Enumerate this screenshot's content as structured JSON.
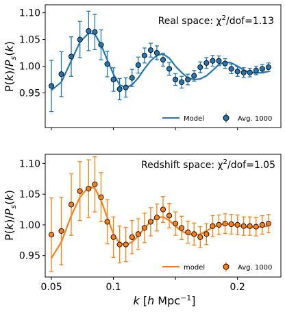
{
  "chart_data": [
    {
      "type": "line",
      "annotation": "Real space: χ²/dof=1.13",
      "annotation_math": {
        "prefix": "Real space: ",
        "chi": "χ",
        "sup": "2",
        "suffix": "/dof=1.13"
      },
      "ylabel": "P(k)/Ps(k)",
      "xlabel": "",
      "xlim": [
        0.045,
        0.235
      ],
      "ylim": [
        0.885,
        1.115
      ],
      "x_ticks": [
        0.05,
        0.1,
        0.15,
        0.2
      ],
      "x_tick_labels": [
        "",
        "",
        "",
        ""
      ],
      "y_ticks": [
        0.95,
        1.0,
        1.05,
        1.1
      ],
      "y_tick_labels": [
        "0.95",
        "1.00",
        "1.05",
        "1.10"
      ],
      "color": "#1f77b4",
      "legend_position": "lower-right",
      "legend": {
        "line": "Model",
        "points": "Avg. 1000"
      },
      "series": [
        {
          "name": "Model",
          "kind": "line",
          "x": [
            0.05,
            0.058,
            0.066,
            0.073,
            0.08,
            0.085,
            0.09,
            0.095,
            0.1,
            0.105,
            0.11,
            0.115,
            0.12,
            0.125,
            0.13,
            0.135,
            0.14,
            0.145,
            0.15,
            0.155,
            0.16,
            0.165,
            0.17,
            0.175,
            0.18,
            0.185,
            0.19,
            0.195,
            0.2,
            0.205,
            0.21,
            0.215,
            0.22,
            0.225
          ],
          "y": [
            0.955,
            0.97,
            1.01,
            1.045,
            1.062,
            1.06,
            1.04,
            1.012,
            0.985,
            0.965,
            0.96,
            0.965,
            0.978,
            0.995,
            1.01,
            1.02,
            1.023,
            1.015,
            1.0,
            0.988,
            0.978,
            0.975,
            0.976,
            0.982,
            0.992,
            1.003,
            1.008,
            1.006,
            1.0,
            0.993,
            0.988,
            0.987,
            0.988,
            0.99
          ]
        },
        {
          "name": "Avg. 1000",
          "kind": "errorbar",
          "x": [
            0.05,
            0.058,
            0.066,
            0.073,
            0.08,
            0.085,
            0.09,
            0.095,
            0.1,
            0.105,
            0.11,
            0.115,
            0.12,
            0.125,
            0.13,
            0.135,
            0.14,
            0.145,
            0.15,
            0.155,
            0.16,
            0.165,
            0.17,
            0.175,
            0.18,
            0.185,
            0.19,
            0.195,
            0.2,
            0.205,
            0.21,
            0.215,
            0.22,
            0.225
          ],
          "y": [
            0.963,
            0.985,
            1.018,
            1.05,
            1.066,
            1.064,
            1.04,
            1.004,
            0.975,
            0.957,
            0.96,
            0.978,
            1.002,
            1.02,
            1.03,
            1.025,
            1.012,
            0.995,
            0.975,
            0.97,
            0.975,
            0.982,
            0.998,
            1.006,
            1.01,
            1.01,
            1.005,
            0.995,
            0.99,
            0.988,
            0.988,
            0.992,
            0.995,
            0.998
          ],
          "yerr": [
            0.048,
            0.042,
            0.037,
            0.034,
            0.037,
            0.033,
            0.028,
            0.024,
            0.022,
            0.02,
            0.018,
            0.016,
            0.015,
            0.014,
            0.013,
            0.013,
            0.012,
            0.012,
            0.011,
            0.011,
            0.01,
            0.01,
            0.01,
            0.01,
            0.01,
            0.009,
            0.009,
            0.009,
            0.009,
            0.009,
            0.008,
            0.008,
            0.008,
            0.008
          ]
        }
      ]
    },
    {
      "type": "line",
      "annotation": "Redshift space: χ²/dof=1.05",
      "annotation_math": {
        "prefix": "Redshift space: ",
        "chi": "χ",
        "sup": "2",
        "suffix": "/dof=1.05"
      },
      "ylabel": "P(k)/Ps(k)",
      "xlabel": "k [h Mpc⁻¹]",
      "xlim": [
        0.045,
        0.235
      ],
      "ylim": [
        0.915,
        1.115
      ],
      "x_ticks": [
        0.05,
        0.1,
        0.15,
        0.2
      ],
      "x_tick_labels": [
        "0.05",
        "0.1",
        "",
        "0.2"
      ],
      "y_ticks": [
        0.95,
        1.0,
        1.05,
        1.1
      ],
      "y_tick_labels": [
        "0.95",
        "1.00",
        "1.05",
        "1.10"
      ],
      "color": "#ff7f0e",
      "legend_position": "lower-right",
      "legend": {
        "line": "model",
        "points": "Avg. 1000"
      },
      "series": [
        {
          "name": "model",
          "kind": "line",
          "x": [
            0.05,
            0.058,
            0.066,
            0.073,
            0.08,
            0.085,
            0.09,
            0.095,
            0.1,
            0.105,
            0.11,
            0.115,
            0.12,
            0.125,
            0.13,
            0.135,
            0.14,
            0.145,
            0.15,
            0.155,
            0.16,
            0.165,
            0.17,
            0.175,
            0.18,
            0.185,
            0.19,
            0.195,
            0.2,
            0.205,
            0.21,
            0.215,
            0.22,
            0.225
          ],
          "y": [
            0.946,
            0.972,
            1.015,
            1.045,
            1.062,
            1.06,
            1.04,
            1.012,
            0.985,
            0.97,
            0.968,
            0.972,
            0.982,
            0.995,
            1.005,
            1.012,
            1.013,
            1.007,
            0.998,
            0.99,
            0.985,
            0.983,
            0.985,
            0.99,
            0.996,
            1.0,
            1.002,
            1.001,
            0.999,
            0.997,
            0.996,
            0.996,
            0.997,
            0.998
          ]
        },
        {
          "name": "Avg. 1000",
          "kind": "errorbar",
          "x": [
            0.05,
            0.058,
            0.066,
            0.073,
            0.08,
            0.085,
            0.09,
            0.095,
            0.1,
            0.105,
            0.11,
            0.115,
            0.12,
            0.125,
            0.13,
            0.135,
            0.14,
            0.145,
            0.15,
            0.155,
            0.16,
            0.165,
            0.17,
            0.175,
            0.18,
            0.185,
            0.19,
            0.195,
            0.2,
            0.205,
            0.21,
            0.215,
            0.22,
            0.225
          ],
          "y": [
            0.984,
            0.99,
            1.033,
            1.055,
            1.059,
            1.066,
            1.045,
            1.005,
            0.98,
            0.968,
            0.968,
            0.98,
            0.985,
            0.995,
            1.005,
            1.012,
            1.025,
            1.015,
            1.002,
            0.995,
            0.988,
            0.985,
            0.98,
            0.985,
            0.998,
            1.0,
            1.002,
            1.001,
            1.0,
            0.998,
            0.998,
            0.997,
            1.0,
            1.002
          ],
          "yerr": [
            0.06,
            0.055,
            0.05,
            0.048,
            0.047,
            0.045,
            0.04,
            0.036,
            0.033,
            0.03,
            0.028,
            0.027,
            0.025,
            0.024,
            0.023,
            0.022,
            0.021,
            0.02,
            0.019,
            0.019,
            0.018,
            0.018,
            0.017,
            0.017,
            0.017,
            0.016,
            0.016,
            0.016,
            0.016,
            0.015,
            0.015,
            0.015,
            0.015,
            0.015
          ]
        }
      ]
    }
  ]
}
